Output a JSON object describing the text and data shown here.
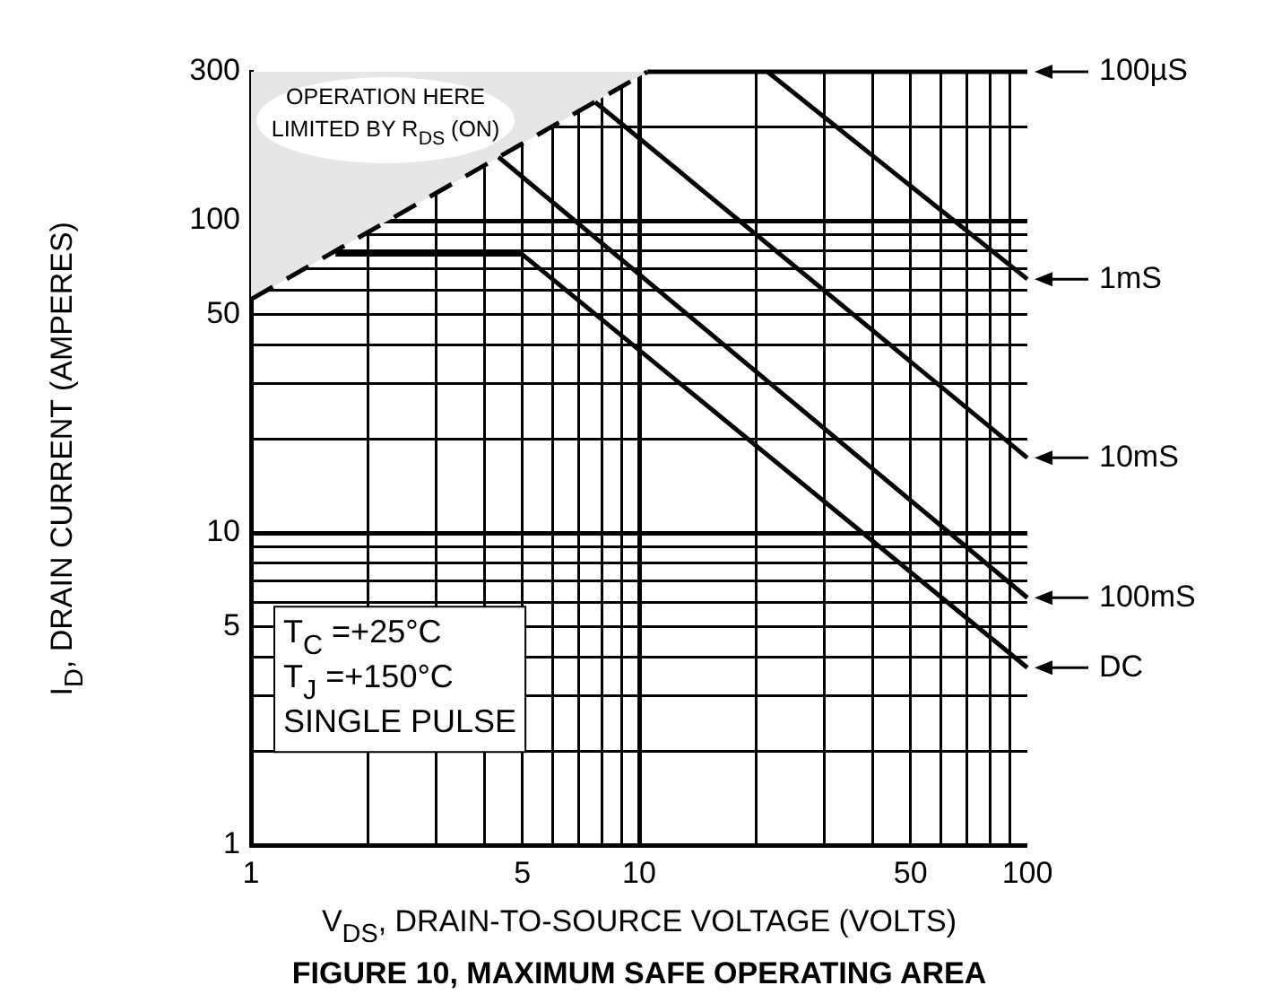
{
  "chart_data": {
    "type": "line",
    "title": "FIGURE 10, MAXIMUM SAFE OPERATING AREA",
    "xlabel": "V$_{DS}$, DRAIN-TO-SOURCE VOLTAGE (VOLTS)",
    "ylabel": "I$_{D}$, DRAIN CURRENT (AMPERES)",
    "log": "xy",
    "grid": true,
    "legend": "right",
    "marker": "none",
    "xlim": [
      1,
      100
    ],
    "ylim": [
      1,
      300
    ],
    "xticks": [
      1,
      {
        "value": 2,
        "label": null
      },
      {
        "value": 3,
        "label": null
      },
      {
        "value": 4,
        "label": null
      },
      5,
      {
        "value": 6,
        "label": null
      },
      {
        "value": 7,
        "label": null
      },
      {
        "value": 8,
        "label": null
      },
      {
        "value": 9,
        "label": null
      },
      10,
      {
        "value": 20,
        "label": null
      },
      {
        "value": 30,
        "label": null
      },
      {
        "value": 40,
        "label": null
      },
      50,
      {
        "value": 60,
        "label": null
      },
      {
        "value": 70,
        "label": null
      },
      {
        "value": 80,
        "label": null
      },
      {
        "value": 90,
        "label": null
      },
      100
    ],
    "yticks": [
      1,
      {
        "value": 2,
        "label": null
      },
      {
        "value": 3,
        "label": null
      },
      {
        "value": 4,
        "label": null
      },
      5,
      {
        "value": 6,
        "label": null
      },
      {
        "value": 7,
        "label": null
      },
      {
        "value": 8,
        "label": null
      },
      {
        "value": 9,
        "label": null
      },
      10,
      {
        "value": 20,
        "label": null
      },
      {
        "value": 30,
        "label": null
      },
      {
        "value": 40,
        "label": null
      },
      50,
      {
        "value": 60,
        "label": null
      },
      {
        "value": 70,
        "label": null
      },
      {
        "value": 80,
        "label": null
      },
      {
        "value": 90,
        "label": null
      },
      100,
      {
        "value": 200,
        "label": null
      },
      300
    ],
    "series": [
      {
        "color": "#000000",
        "line_style": "dashed",
        "x": [
          1,
          10.5
        ],
        "values": [
          56,
          300
        ],
        "lower": [
          56,
          300
        ],
        "upper": [
          300,
          300
        ]
      },
      {
        "name": "100µS",
        "color": "#000000",
        "x": [
          10.5,
          100
        ],
        "values": [
          300,
          300
        ]
      },
      {
        "name": "1mS",
        "color": "#000000",
        "x": [
          21.4,
          100
        ],
        "values": [
          300,
          65
        ]
      },
      {
        "name": "10mS",
        "color": "#000000",
        "x": [
          7.7,
          100
        ],
        "values": [
          240,
          17.4
        ]
      },
      {
        "name": "100mS",
        "color": "#000000",
        "x": [
          4.34,
          100
        ],
        "values": [
          160,
          6.2
        ]
      },
      {
        "name": "DC",
        "color": "#000000",
        "x": [
          1.65,
          5,
          100
        ],
        "values": [
          78,
          78,
          3.7
        ]
      }
    ],
    "annotations": [
      "OPERATION HERE LIMITED BY R$_{DS}$ (ON)",
      "T$_{C}$ =+25°C",
      "T$_{J}$ =+150°C",
      "SINGLE PULSE"
    ]
  }
}
